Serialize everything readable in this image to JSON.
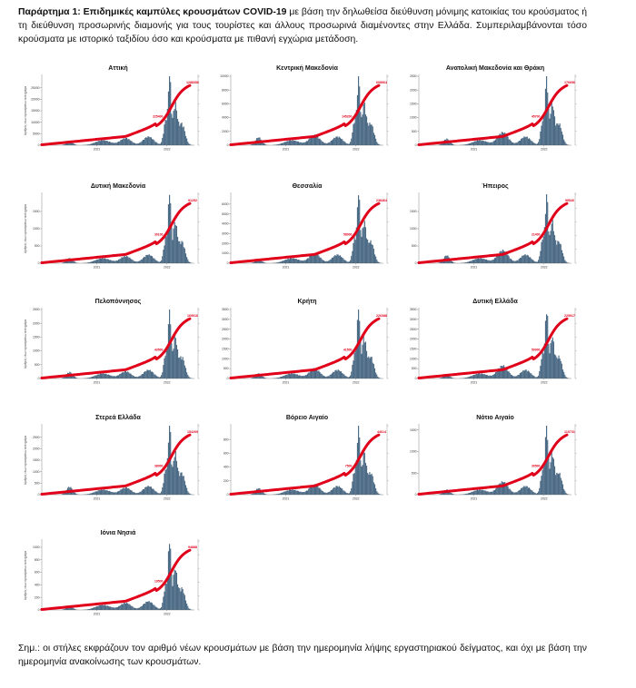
{
  "intro": {
    "bold": "Παράρτημα 1: Επιδημικές καμπύλες κρουσμάτων COVID-19",
    "text": " με βάση την δηλωθείσα διεύθυνση μόνιμης κατοικίας του κρούσματος ή τη διεύθυνση προσωρινής διαμονής για τους τουρίστες και άλλους προσωρινά διαμένοντες στην Ελλάδα. Συμπεριλαμβάνονται τόσο κρούσματα με ιστορικό ταξιδίου όσο και κρούσματα με πιθανή εγχώρια μετάδοση."
  },
  "note": "Σημ.: οι στήλες εκφράζουν τον αριθμό νέων κρουσμάτων με βάση την ημερομηνία λήψης εργαστηριακού δείγματος, και όχι με βάση την ημερομηνία ανακοίνωσης των κρουσμάτων.",
  "colors": {
    "bars": "#4b6a85",
    "line": "#e0001a",
    "axis": "#555555"
  },
  "chart_data": [
    {
      "type": "bar",
      "title": "Αττική",
      "x_ticks": [
        "2021",
        "2022"
      ],
      "ylim": [
        0,
        30000
      ],
      "y_ticks": [
        "0",
        "5000",
        "10000",
        "15000",
        "20000",
        "25000"
      ],
      "ylabel": "Αριθμός νέων κρουσμάτων ανά ημέρα",
      "end_label": "1288356",
      "mid_label": "225400"
    },
    {
      "type": "bar",
      "title": "Κεντρική Μακεδονία",
      "x_ticks": [
        "2021",
        "2022"
      ],
      "ylim": [
        0,
        10000
      ],
      "y_ticks": [
        "0",
        "2000",
        "4000",
        "6000",
        "8000",
        "10000"
      ],
      "ylabel": "",
      "end_label": "608964",
      "mid_label": "145200"
    },
    {
      "type": "bar",
      "title": "Ανατολική Μακεδονία και Θράκη",
      "x_ticks": [
        "2021",
        "2022"
      ],
      "ylim": [
        0,
        2500
      ],
      "y_ticks": [
        "0",
        "500",
        "1000",
        "1500",
        "2000",
        "2500"
      ],
      "ylabel": "",
      "end_label": "176696",
      "mid_label": "45700"
    },
    {
      "type": "bar",
      "title": "Δυτική Μακεδονία",
      "x_ticks": [
        "2021",
        "2022"
      ],
      "ylim": [
        0,
        2000
      ],
      "y_ticks": [
        "0",
        "500",
        "1000",
        "1500"
      ],
      "ylabel": "Αριθμός νέων κρουσμάτων ανά ημέρα",
      "end_label": "91252",
      "mid_label": "30100"
    },
    {
      "type": "bar",
      "title": "Θεσσαλία",
      "x_ticks": [
        "2021",
        "2022"
      ],
      "ylim": [
        0,
        7000
      ],
      "y_ticks": [
        "0",
        "1000",
        "2000",
        "3000",
        "4000",
        "5000",
        "6000"
      ],
      "ylabel": "",
      "end_label": "238464",
      "mid_label": "58000"
    },
    {
      "type": "bar",
      "title": "Ήπειρος",
      "x_ticks": [
        "2021",
        "2022"
      ],
      "ylim": [
        0,
        2000
      ],
      "y_ticks": [
        "0",
        "500",
        "1000",
        "1500"
      ],
      "ylabel": "",
      "end_label": "99540",
      "mid_label": "21400"
    },
    {
      "type": "bar",
      "title": "Πελοπόννησος",
      "x_ticks": [
        "2021",
        "2022"
      ],
      "ylim": [
        0,
        2500
      ],
      "y_ticks": [
        "0",
        "500",
        "1000",
        "1500",
        "2000",
        "2500"
      ],
      "ylabel": "Αριθμός νέων κρουσμάτων ανά ημέρα",
      "end_label": "169016",
      "mid_label": "43500"
    },
    {
      "type": "bar",
      "title": "Κρήτη",
      "x_ticks": [
        "2021",
        "2022"
      ],
      "ylim": [
        0,
        3500
      ],
      "y_ticks": [
        "0",
        "500",
        "1000",
        "1500",
        "2000",
        "2500",
        "3000",
        "3500"
      ],
      "ylabel": "",
      "end_label": "226388",
      "mid_label": "41500"
    },
    {
      "type": "bar",
      "title": "Δυτική Ελλάδα",
      "x_ticks": [
        "2021",
        "2022"
      ],
      "ylim": [
        0,
        3500
      ],
      "y_ticks": [
        "0",
        "500",
        "1000",
        "1500",
        "2000",
        "2500",
        "3000",
        "3500"
      ],
      "ylabel": "",
      "end_label": "225917",
      "mid_label": "50000"
    },
    {
      "type": "bar",
      "title": "Στερεά Ελλάδα",
      "x_ticks": [
        "2021",
        "2022"
      ],
      "ylim": [
        0,
        3000
      ],
      "y_ticks": [
        "0",
        "500",
        "1000",
        "1500",
        "2000",
        "2500"
      ],
      "ylabel": "Αριθμός νέων κρουσμάτων ανά ημέρα",
      "end_label": "154209",
      "mid_label": "38000"
    },
    {
      "type": "bar",
      "title": "Βόρειο Αιγαίο",
      "x_ticks": [
        "2021",
        "2022"
      ],
      "ylim": [
        0,
        1000
      ],
      "y_ticks": [
        "0",
        "200",
        "400",
        "600",
        "800"
      ],
      "ylabel": "",
      "end_label": "44614",
      "mid_label": "7500"
    },
    {
      "type": "bar",
      "title": "Νότιο Αιγαίο",
      "x_ticks": [
        "2021",
        "2022"
      ],
      "ylim": [
        0,
        1600
      ],
      "y_ticks": [
        "0",
        "500",
        "1000",
        "1500"
      ],
      "ylabel": "",
      "end_label": "110731",
      "mid_label": "30500"
    },
    {
      "type": "bar",
      "title": "Ιόνια Νησιά",
      "x_ticks": [
        "2021",
        "2022"
      ],
      "ylim": [
        0,
        1100
      ],
      "y_ticks": [
        "0",
        "200",
        "400",
        "600",
        "800",
        "1000"
      ],
      "ylabel": "Αριθμός νέων κρουσμάτων ανά ημέρα",
      "end_label": "94888",
      "mid_label": "19500"
    }
  ]
}
